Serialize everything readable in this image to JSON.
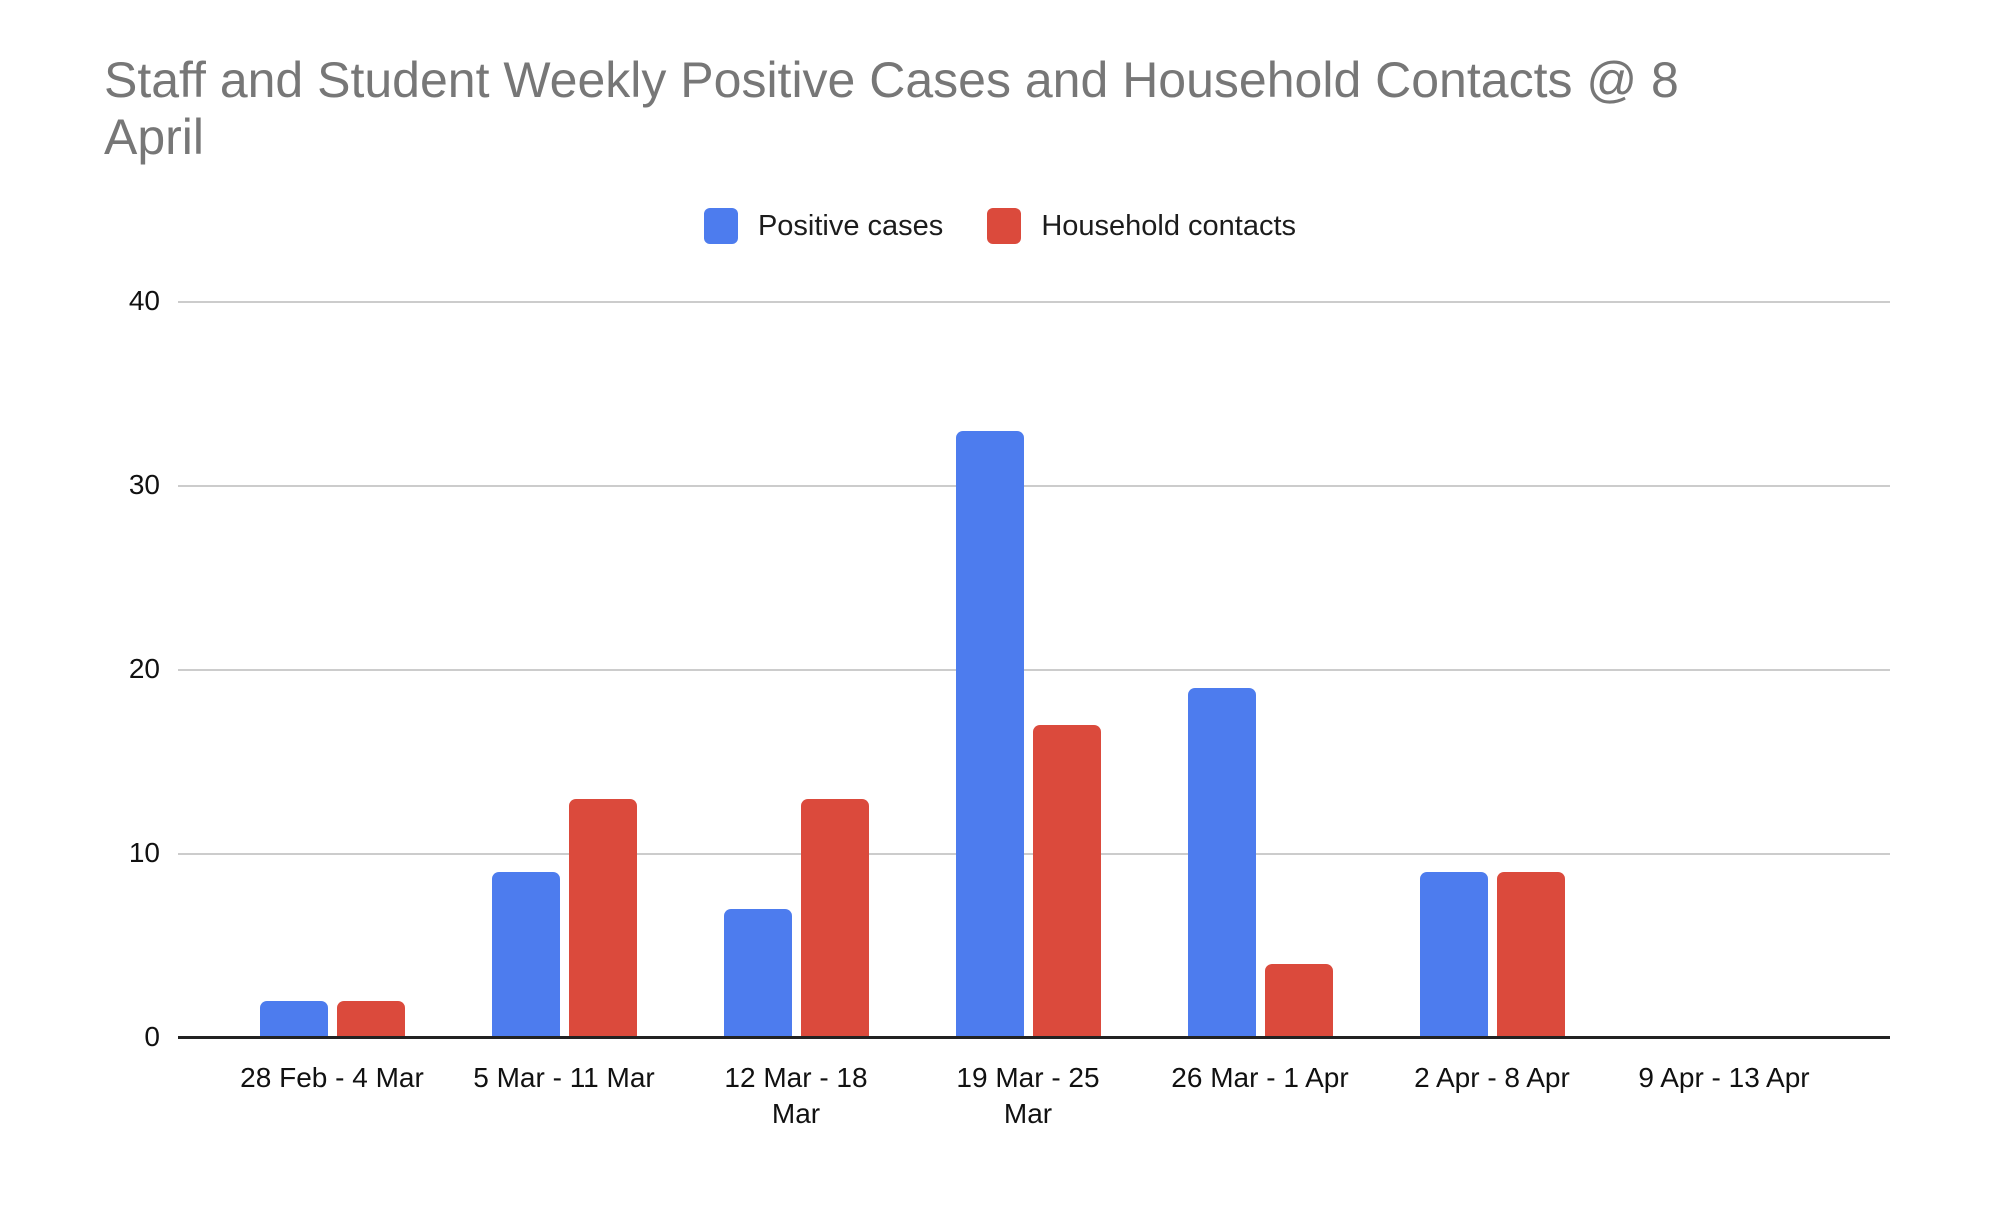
{
  "title": {
    "text": "Staff and Student Weekly Positive Cases and Household Contacts @ 8 April",
    "lines": [
      "Staff and Student Weekly Positive Cases and Household Contacts @ 8",
      "April"
    ],
    "color": "#777777"
  },
  "legend": {
    "items": [
      {
        "label": "Positive cases",
        "color": "#4d7cee"
      },
      {
        "label": "Household contacts",
        "color": "#db4a3c"
      }
    ]
  },
  "chart_data": {
    "type": "bar",
    "title": "Staff and Student Weekly Positive Cases and Household Contacts @ 8 April",
    "categories": [
      "28 Feb - 4 Mar",
      "5 Mar - 11 Mar",
      "12 Mar - 18 Mar",
      "19 Mar - 25 Mar",
      "26 Mar - 1 Apr",
      "2 Apr - 8 Apr",
      "9 Apr - 13 Apr"
    ],
    "category_label_lines": [
      [
        "28 Feb - 4 Mar"
      ],
      [
        "5 Mar - 11 Mar"
      ],
      [
        "12 Mar - 18",
        "Mar"
      ],
      [
        "19 Mar - 25",
        "Mar"
      ],
      [
        "26 Mar - 1 Apr"
      ],
      [
        "2 Apr - 8 Apr"
      ],
      [
        "9 Apr - 13 Apr"
      ]
    ],
    "series": [
      {
        "name": "Positive cases",
        "color": "#4d7cee",
        "values": [
          2,
          9,
          7,
          33,
          19,
          9,
          0
        ]
      },
      {
        "name": "Household contacts",
        "color": "#db4a3c",
        "values": [
          2,
          13,
          13,
          17,
          4,
          9,
          0
        ]
      }
    ],
    "xlabel": "",
    "ylabel": "",
    "ylim": [
      0,
      40
    ],
    "yticks": [
      0,
      10,
      20,
      30,
      40
    ],
    "grid": true,
    "legend_position": "top",
    "colors": {
      "gridline": "#cccccc",
      "baseline": "#222222",
      "tick_label": "#111111"
    }
  }
}
